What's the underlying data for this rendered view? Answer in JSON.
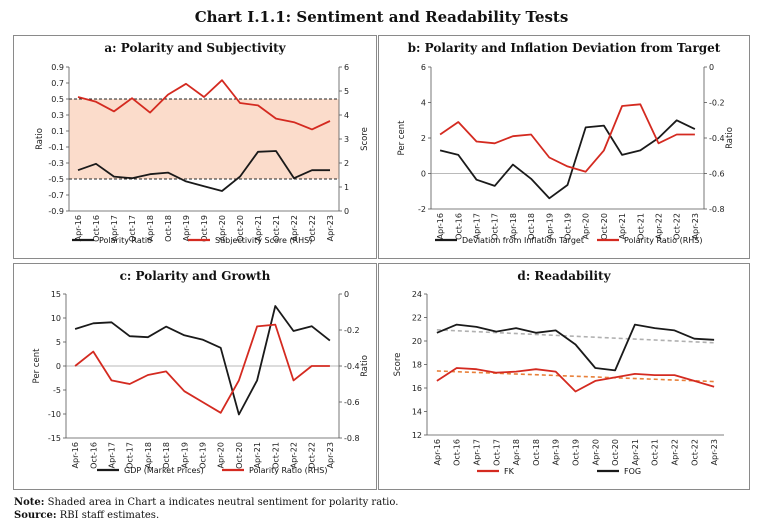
{
  "figure_title": "Chart I.1.1: Sentiment and Readability Tests",
  "footer": {
    "note_label": "Note:",
    "note_text": " Shaded area in Chart a indicates neutral sentiment for polarity ratio.",
    "source_label": "Source:",
    "source_text": " RBI staff estimates."
  },
  "colors": {
    "black": "#1a1a1a",
    "red": "#d42a20",
    "shade": "#fbdccb",
    "grey_trend": "#b0b0b0",
    "orange_trend": "#e8803a"
  },
  "chart_data": [
    {
      "id": "a",
      "type": "line",
      "title": "a: Polarity and Subjectivity",
      "ylabel": "Ratio",
      "y2label": "Score",
      "ylim": [
        -0.9,
        0.9
      ],
      "yticks": [
        -0.9,
        -0.7,
        -0.5,
        -0.3,
        -0.1,
        0.1,
        0.3,
        0.5,
        0.7,
        0.9
      ],
      "y2lim": [
        0,
        6
      ],
      "y2ticks": [
        0,
        1,
        2,
        3,
        4,
        5,
        6
      ],
      "neutral_band": [
        -0.5,
        0.5
      ],
      "categories": [
        "Apr-16",
        "Oct-16",
        "Apr-17",
        "Oct-17",
        "Apr-18",
        "Oct-18",
        "Apr-19",
        "Oct-19",
        "Apr-20",
        "Oct-20",
        "Apr-21",
        "Oct-21",
        "Apr-22",
        "Oct-22",
        "Apr-23"
      ],
      "series": [
        {
          "name": "Polarity Ratio",
          "axis": "left",
          "color": "#1a1a1a",
          "values": [
            -0.39,
            -0.31,
            -0.47,
            -0.49,
            -0.44,
            -0.42,
            -0.53,
            -0.59,
            -0.65,
            -0.47,
            -0.16,
            -0.15,
            -0.49,
            -0.39,
            -0.39
          ]
        },
        {
          "name": "Subjectivity Score (RHS)",
          "axis": "right",
          "color": "#d42a20",
          "values": [
            4.75,
            4.55,
            4.15,
            4.7,
            4.1,
            4.85,
            5.3,
            4.75,
            5.45,
            4.5,
            4.4,
            3.85,
            3.7,
            3.4,
            3.75
          ]
        }
      ]
    },
    {
      "id": "b",
      "type": "line",
      "title": "b: Polarity and Inflation Deviation from Target",
      "ylabel": "Per cent",
      "y2label": "Ratio",
      "ylim": [
        -2,
        6
      ],
      "yticks": [
        -2,
        0,
        2,
        4,
        6
      ],
      "y2lim": [
        -0.8,
        0
      ],
      "y2ticks": [
        "-0.8",
        "-0.6",
        "-0.4",
        "-0.2",
        "0"
      ],
      "categories": [
        "Apr-16",
        "Oct-16",
        "Apr-17",
        "Oct-17",
        "Apr-18",
        "Oct-18",
        "Apr-19",
        "Oct-19",
        "Apr-20",
        "Oct-20",
        "Apr-21",
        "Oct-21",
        "Apr-22",
        "Oct-22",
        "Apr-23"
      ],
      "series": [
        {
          "name": "Deviation from Inflation Target",
          "axis": "left",
          "color": "#1a1a1a",
          "values": [
            1.3,
            1.05,
            -0.35,
            -0.7,
            0.5,
            -0.3,
            -1.4,
            -0.65,
            2.6,
            2.7,
            1.05,
            1.3,
            2.0,
            3.0,
            2.5
          ]
        },
        {
          "name": "Polarity Ratio (RHS)",
          "axis": "right",
          "color": "#d42a20",
          "values": [
            -0.38,
            -0.31,
            -0.42,
            -0.43,
            -0.39,
            -0.38,
            -0.51,
            -0.56,
            -0.59,
            -0.47,
            -0.22,
            -0.21,
            -0.43,
            -0.38,
            -0.38
          ]
        }
      ]
    },
    {
      "id": "c",
      "type": "line",
      "title": "c: Polarity and Growth",
      "ylabel": "Per cent",
      "y2label": "Ratio",
      "ylim": [
        -15,
        15
      ],
      "yticks": [
        -15,
        -10,
        -5,
        0,
        5,
        10,
        15
      ],
      "y2lim": [
        -0.8,
        0
      ],
      "y2ticks": [
        "-0.8",
        "-0.6",
        "-0.4",
        "-0.2",
        "0"
      ],
      "categories": [
        "Apr-16",
        "Oct-16",
        "Apr-17",
        "Oct-17",
        "Apr-18",
        "Oct-18",
        "Apr-19",
        "Oct-19",
        "Apr-20",
        "Oct-20",
        "Apr-21",
        "Oct-21",
        "Apr-22",
        "Oct-22",
        "Apr-23"
      ],
      "series": [
        {
          "name": "GDP (Market Prices)",
          "axis": "left",
          "color": "#1a1a1a",
          "values": [
            7.7,
            8.9,
            9.1,
            6.2,
            6.0,
            8.2,
            6.4,
            5.5,
            3.8,
            -10.1,
            -3.0,
            12.5,
            7.3,
            8.3,
            5.3
          ]
        },
        {
          "name": "Polarity Ratio (RHS)",
          "axis": "right",
          "color": "#d42a20",
          "values": [
            -0.4,
            -0.32,
            -0.48,
            -0.5,
            -0.45,
            -0.43,
            -0.54,
            -0.6,
            -0.66,
            -0.48,
            -0.18,
            -0.17,
            -0.48,
            -0.4,
            -0.4
          ]
        }
      ]
    },
    {
      "id": "d",
      "type": "line",
      "title": "d: Readability",
      "ylabel": "Score",
      "ylim": [
        12,
        24
      ],
      "yticks": [
        12,
        14,
        16,
        18,
        20,
        22,
        24
      ],
      "categories": [
        "Apr-16",
        "Oct-16",
        "Apr-17",
        "Oct-17",
        "Apr-18",
        "Oct-18",
        "Apr-19",
        "Oct-19",
        "Apr-20",
        "Oct-20",
        "Apr-21",
        "Oct-21",
        "Apr-22",
        "Oct-22",
        "Apr-23"
      ],
      "series": [
        {
          "name": "FK",
          "axis": "left",
          "color": "#d42a20",
          "values": [
            16.6,
            17.7,
            17.6,
            17.3,
            17.4,
            17.6,
            17.4,
            15.7,
            16.6,
            16.9,
            17.2,
            17.1,
            17.1,
            16.6,
            16.1
          ]
        },
        {
          "name": "FOG",
          "axis": "left",
          "color": "#1a1a1a",
          "values": [
            20.7,
            21.4,
            21.2,
            20.8,
            21.1,
            20.7,
            20.9,
            19.7,
            17.7,
            17.5,
            21.4,
            21.1,
            20.9,
            20.2,
            20.1
          ]
        }
      ],
      "trendlines": [
        {
          "of": "FOG",
          "color": "#b0b0b0",
          "values": [
            20.95,
            19.85
          ]
        },
        {
          "of": "FK",
          "color": "#e8803a",
          "values": [
            17.45,
            16.55
          ]
        }
      ]
    }
  ]
}
